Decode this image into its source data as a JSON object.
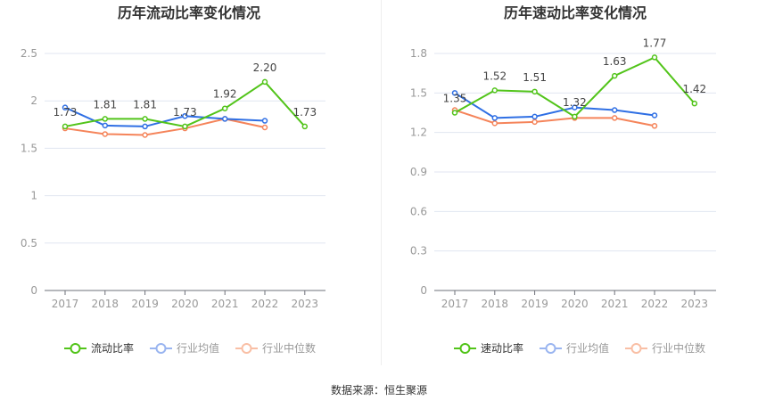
{
  "source": "数据来源：恒生聚源",
  "chart_data": [
    {
      "type": "line",
      "title": "历年流动比率变化情况",
      "categories": [
        "2017",
        "2018",
        "2019",
        "2020",
        "2021",
        "2022",
        "2023"
      ],
      "ylim": [
        0,
        2.5
      ],
      "yticks": [
        0,
        0.5,
        1,
        1.5,
        2,
        2.5
      ],
      "ytick_labels": [
        "0",
        "0.5",
        "1",
        "1.5",
        "2",
        "2.5"
      ],
      "grid": true,
      "legend": "bottom",
      "series": [
        {
          "name": "流动比率",
          "color": "#52c41a",
          "values": [
            1.73,
            1.81,
            1.81,
            1.73,
            1.92,
            2.2,
            1.73
          ],
          "labels": [
            "1.73",
            "1.81",
            "1.81",
            "1.73",
            "1.92",
            "2.20",
            "1.73"
          ]
        },
        {
          "name": "行业均值",
          "color": "#2f6fe4",
          "values": [
            1.93,
            1.74,
            1.73,
            1.84,
            1.81,
            1.79,
            null
          ]
        },
        {
          "name": "行业中位数",
          "color": "#f5845a",
          "values": [
            1.71,
            1.65,
            1.64,
            1.71,
            1.81,
            1.72,
            null
          ]
        }
      ]
    },
    {
      "type": "line",
      "title": "历年速动比率变化情况",
      "categories": [
        "2017",
        "2018",
        "2019",
        "2020",
        "2021",
        "2022",
        "2023"
      ],
      "ylim": [
        0,
        1.8
      ],
      "yticks": [
        0,
        0.3,
        0.6,
        0.9,
        1.2,
        1.5,
        1.8
      ],
      "ytick_labels": [
        "0",
        "0.3",
        "0.6",
        "0.9",
        "1.2",
        "1.5",
        "1.8"
      ],
      "grid": true,
      "legend": "bottom",
      "series": [
        {
          "name": "速动比率",
          "color": "#52c41a",
          "values": [
            1.35,
            1.52,
            1.51,
            1.32,
            1.63,
            1.77,
            1.42
          ],
          "labels": [
            "1.35",
            "1.52",
            "1.51",
            "1.32",
            "1.63",
            "1.77",
            "1.42"
          ]
        },
        {
          "name": "行业均值",
          "color": "#2f6fe4",
          "values": [
            1.5,
            1.31,
            1.32,
            1.39,
            1.37,
            1.33,
            null
          ]
        },
        {
          "name": "行业中位数",
          "color": "#f5845a",
          "values": [
            1.37,
            1.27,
            1.28,
            1.31,
            1.31,
            1.25,
            null
          ]
        }
      ]
    }
  ]
}
